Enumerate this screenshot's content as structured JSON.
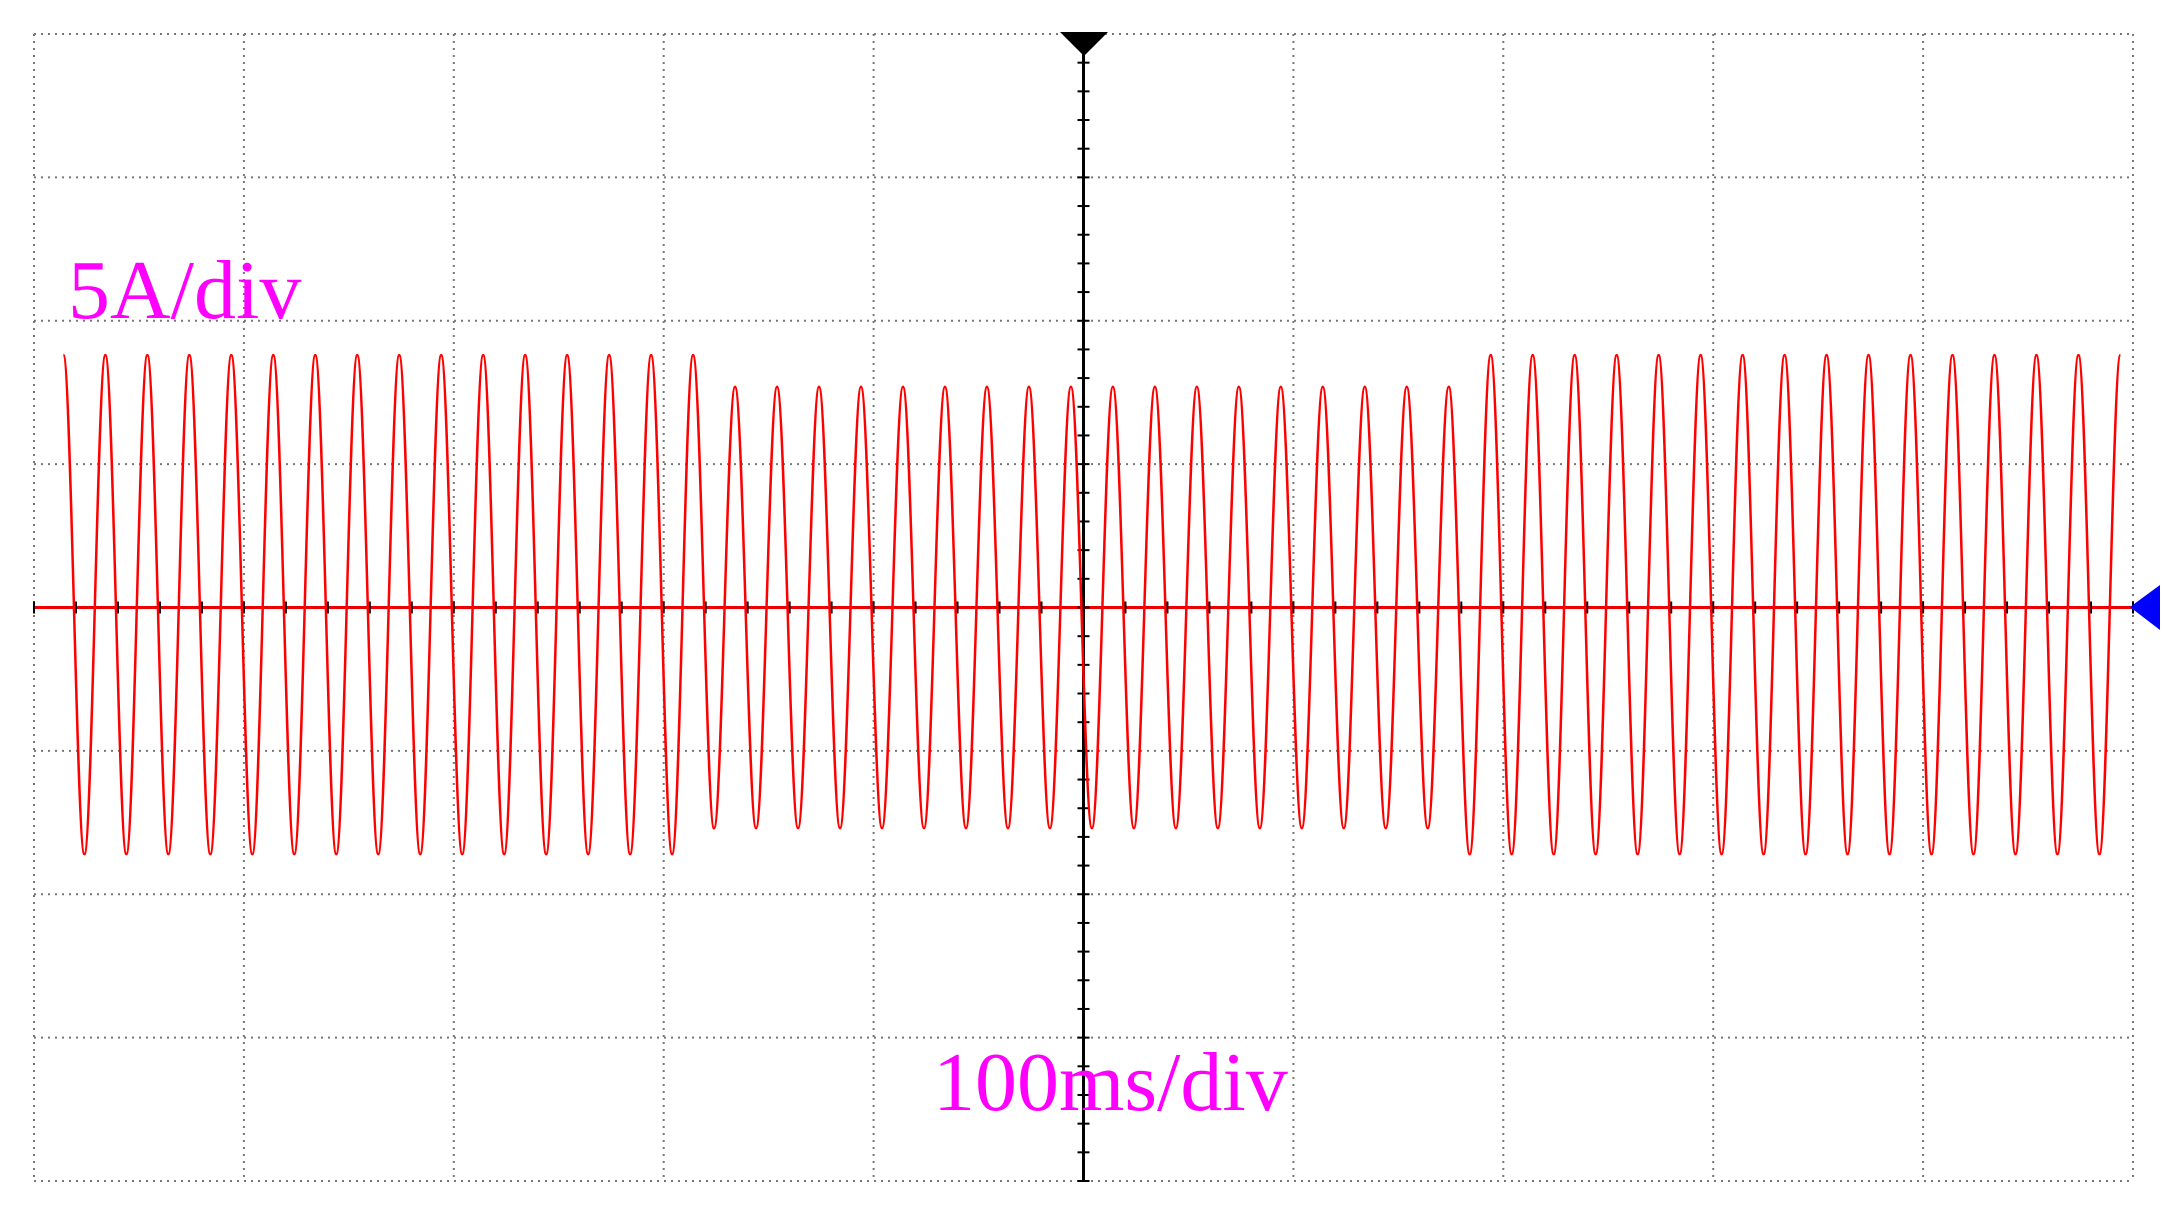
{
  "chart_data": {
    "type": "line",
    "annotations": [
      "5A/div",
      "100ms/div"
    ],
    "x": [
      -486,
      -476,
      -466,
      -456,
      -446,
      -436,
      -426,
      -416,
      -406,
      -396,
      -386,
      -376,
      -366,
      -356,
      -346,
      -336,
      -326,
      -316,
      -306,
      -296,
      -286,
      -276,
      -266,
      -256,
      -246,
      -236,
      -226,
      -216,
      -206,
      -196,
      -186,
      -176,
      -166,
      -156,
      -146,
      -136,
      -126,
      -116,
      -106,
      -96,
      -86,
      -76,
      -66,
      -56,
      -46,
      -36,
      -26,
      -16,
      -6,
      4,
      14,
      24,
      34,
      44,
      54,
      64,
      74,
      84,
      94,
      104,
      114,
      124,
      134,
      144,
      154,
      164,
      174,
      184,
      194,
      204,
      214,
      224,
      234,
      244,
      254,
      264,
      274,
      284,
      294,
      304,
      314,
      324,
      334,
      344,
      354,
      364,
      374,
      384,
      394,
      404,
      414,
      424,
      434,
      444,
      454,
      464,
      474,
      484,
      494
    ],
    "values": [
      8.8,
      -8.6,
      8.8,
      -8.6,
      8.8,
      -8.6,
      8.8,
      -8.6,
      8.8,
      -8.6,
      8.8,
      -8.6,
      8.8,
      -8.6,
      8.8,
      -8.6,
      8.8,
      -8.6,
      8.8,
      -8.6,
      8.8,
      -8.6,
      8.8,
      -8.6,
      8.8,
      -8.6,
      8.8,
      -8.6,
      8.8,
      -8.6,
      8.8,
      -7.7,
      7.7,
      -7.7,
      7.7,
      -7.7,
      7.7,
      -7.7,
      7.7,
      -7.7,
      7.7,
      -7.7,
      7.7,
      -7.7,
      7.7,
      -7.7,
      7.7,
      -7.7,
      7.7,
      -7.7,
      7.7,
      -7.7,
      7.7,
      -7.7,
      7.7,
      -7.7,
      7.7,
      -7.7,
      7.7,
      -7.7,
      7.7,
      -7.7,
      7.7,
      -7.7,
      7.7,
      -7.7,
      7.7,
      -8.6,
      8.8,
      -8.6,
      8.8,
      -8.6,
      8.8,
      -8.6,
      8.8,
      -8.6,
      8.8,
      -8.6,
      8.8,
      -8.6,
      8.8,
      -8.6,
      8.8,
      -8.6,
      8.8,
      -8.6,
      8.8,
      -8.6,
      8.8,
      -8.6,
      8.8,
      -8.6,
      8.8,
      -8.6,
      8.8,
      -8.6,
      8.8,
      -8.6,
      8.8
    ],
    "color": "#ff0000",
    "xlim": [
      -500,
      500
    ],
    "xticks": [
      -500,
      -400,
      -300,
      -200,
      -100,
      0,
      100,
      200,
      300,
      400,
      500
    ],
    "ylim": [
      -20,
      20
    ],
    "yticks": [
      -20,
      -15,
      -10,
      -5,
      0,
      5,
      10,
      15,
      20
    ],
    "grid": true
  }
}
